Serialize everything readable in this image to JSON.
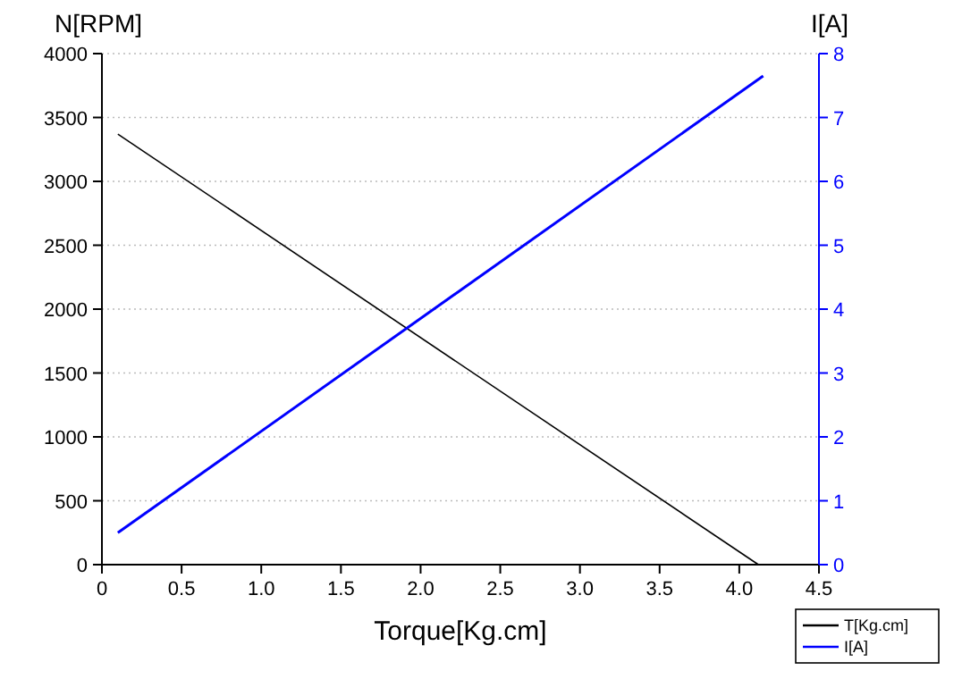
{
  "chart_data": {
    "type": "line",
    "xlabel": "Torque[Kg.cm]",
    "ylabel": "N[RPM]",
    "y2label": "I[A]",
    "series": [
      {
        "name": "T[Kg.cm]",
        "color": "#000000",
        "x": [
          0.1,
          4.12
        ],
        "values": [
          3370,
          0
        ]
      },
      {
        "name": "I[A]",
        "color": "#0000ff",
        "axis": "y2",
        "x": [
          0.1,
          4.15
        ],
        "values": [
          0.5,
          7.65
        ]
      }
    ],
    "xlim": [
      0,
      4.5
    ],
    "xticks": [
      0,
      {
        "value": 0.5,
        "label": "0.5"
      },
      {
        "value": 1,
        "label": "1.0"
      },
      {
        "value": 1.5,
        "label": "1.5"
      },
      {
        "value": 2,
        "label": "2.0"
      },
      {
        "value": 2.5,
        "label": "2.5"
      },
      {
        "value": 3,
        "label": "3.0"
      },
      {
        "value": 3.5,
        "label": "3.5"
      },
      {
        "value": 4,
        "label": "4.0"
      },
      {
        "value": 4.5,
        "label": "4.5"
      }
    ],
    "ylim": [
      0,
      4000
    ],
    "yticks": [
      0,
      500,
      1000,
      1500,
      2000,
      2500,
      3000,
      3500,
      4000
    ],
    "y2lim": [
      0,
      8
    ],
    "y2ticks": [
      0,
      1,
      2,
      3,
      4,
      5,
      6,
      7,
      8
    ],
    "grid": "y",
    "legend": "bottom right",
    "marker": "none",
    "line_style": "solid"
  }
}
